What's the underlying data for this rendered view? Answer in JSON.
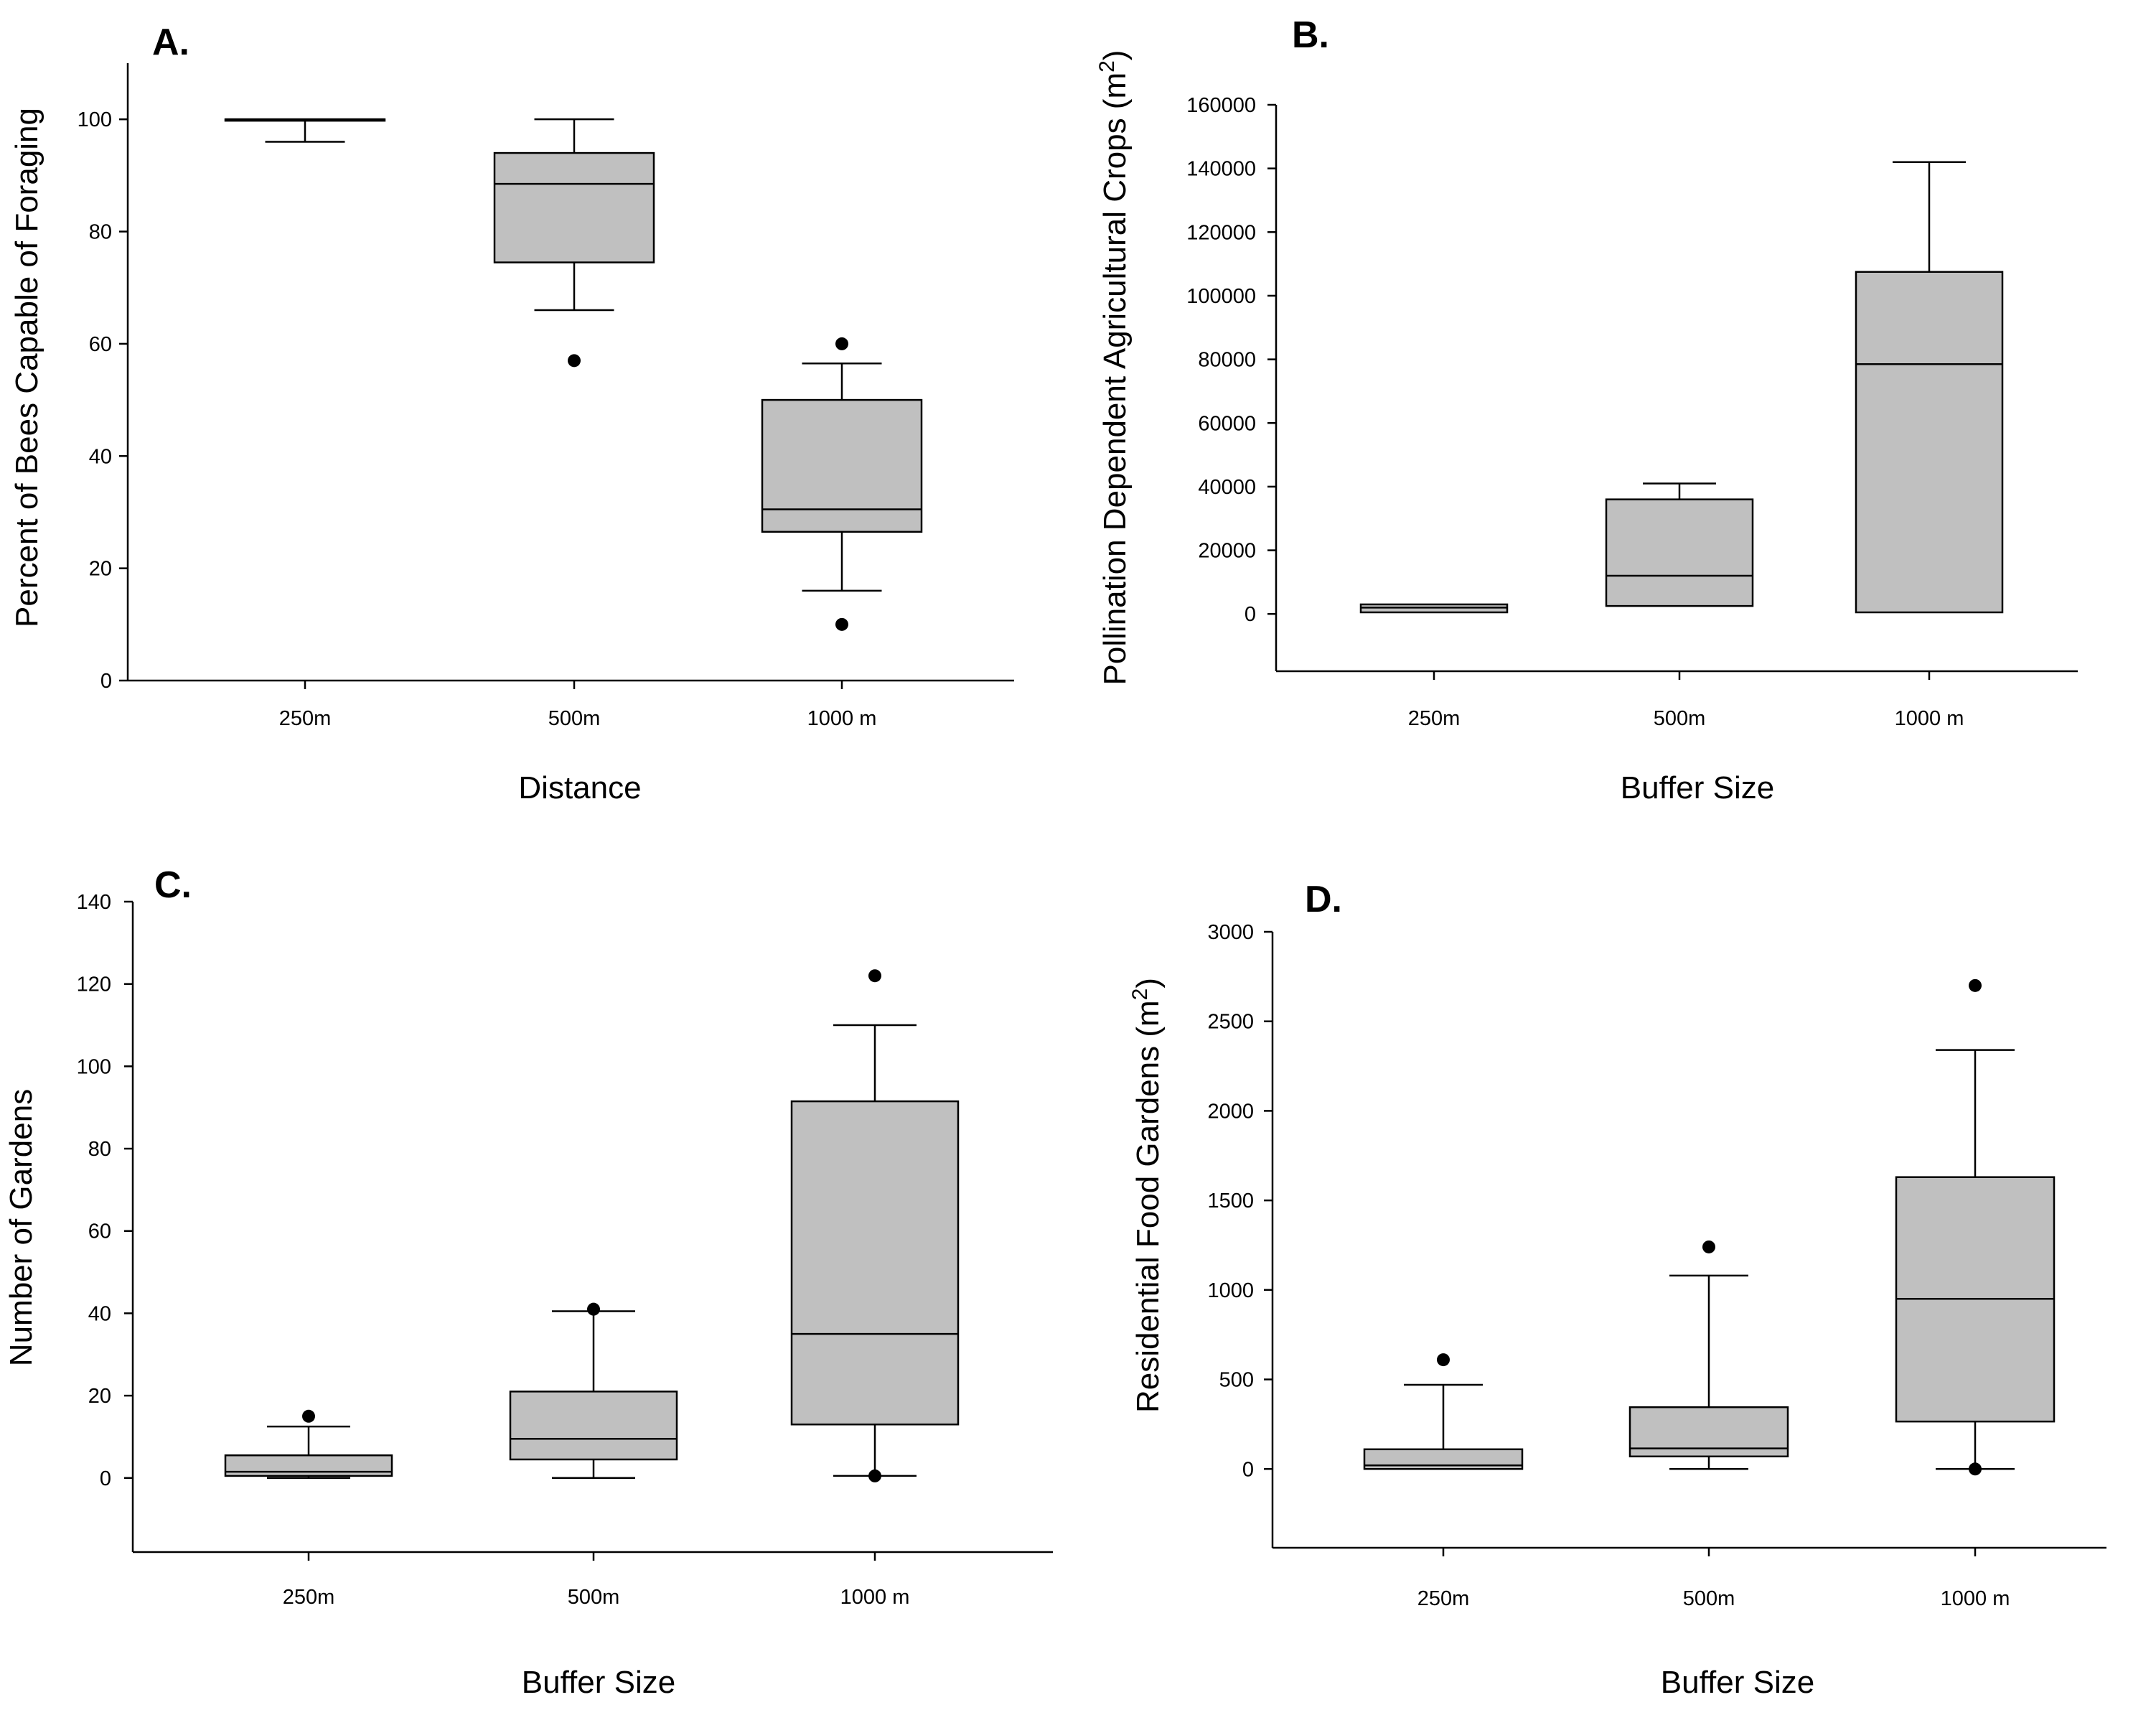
{
  "chart_data": [
    {
      "type": "box",
      "panel_label": "A.",
      "xlabel": "Distance",
      "ylabel": "Percent of Bees Capable of Foraging",
      "ylabel_sup": "",
      "ylabel_tail": "",
      "ylim": [
        0,
        110
      ],
      "yticks": [
        0,
        20,
        40,
        60,
        80,
        100
      ],
      "ytick_labels": [
        "0",
        "20",
        "40",
        "60",
        "80",
        "100"
      ],
      "categories": [
        "250m",
        "500m",
        "1000 m"
      ],
      "boxes": [
        {
          "whisker_low": 96,
          "q1": 99.8,
          "median": 100,
          "q3": 100,
          "whisker_high": 100,
          "outliers": []
        },
        {
          "whisker_low": 66,
          "q1": 74.5,
          "median": 88.5,
          "q3": 94,
          "whisker_high": 100,
          "outliers": [
            57
          ]
        },
        {
          "whisker_low": 16,
          "q1": 26.5,
          "median": 30.5,
          "q3": 50,
          "whisker_high": 56.5,
          "outliers": [
            60,
            10
          ]
        }
      ]
    },
    {
      "type": "box",
      "panel_label": "B.",
      "xlabel": "Buffer Size",
      "ylabel": "Pollination Dependent Agricultural Crops (m",
      "ylabel_sup": "2",
      "ylabel_tail": ")",
      "ylim": [
        -18000,
        160000
      ],
      "yticks": [
        0,
        20000,
        40000,
        60000,
        80000,
        100000,
        120000,
        140000,
        160000
      ],
      "ytick_labels": [
        "0",
        "20000",
        "40000",
        "60000",
        "80000",
        "100000",
        "120000",
        "140000",
        "160000"
      ],
      "categories": [
        "250m",
        "500m",
        "1000 m"
      ],
      "boxes": [
        {
          "whisker_low": 500,
          "q1": 500,
          "median": 2000,
          "q3": 3000,
          "whisker_high": 3000,
          "outliers": []
        },
        {
          "whisker_low": 2500,
          "q1": 2500,
          "median": 12000,
          "q3": 36000,
          "whisker_high": 41000,
          "outliers": []
        },
        {
          "whisker_low": 500,
          "q1": 500,
          "median": 78500,
          "q3": 107500,
          "whisker_high": 142000,
          "outliers": []
        }
      ]
    },
    {
      "type": "box",
      "panel_label": "C.",
      "xlabel": "Buffer Size",
      "ylabel": "Number of Gardens",
      "ylabel_sup": "",
      "ylabel_tail": "",
      "ylim": [
        -18,
        140
      ],
      "yticks": [
        0,
        20,
        40,
        60,
        80,
        100,
        120,
        140
      ],
      "ytick_labels": [
        "0",
        "20",
        "40",
        "60",
        "80",
        "100",
        "120",
        "140"
      ],
      "categories": [
        "250m",
        "500m",
        "1000 m"
      ],
      "boxes": [
        {
          "whisker_low": 0,
          "q1": 0.5,
          "median": 1.5,
          "q3": 5.5,
          "whisker_high": 12.5,
          "outliers": [
            15
          ]
        },
        {
          "whisker_low": 0,
          "q1": 4.5,
          "median": 9.5,
          "q3": 21,
          "whisker_high": 40.5,
          "outliers": [
            41
          ]
        },
        {
          "whisker_low": 0.5,
          "q1": 13,
          "median": 35,
          "q3": 91.5,
          "whisker_high": 110,
          "outliers": [
            122,
            0.5
          ]
        }
      ]
    },
    {
      "type": "box",
      "panel_label": "D.",
      "xlabel": "Buffer Size",
      "ylabel": "Residential Food Gardens (m",
      "ylabel_sup": "2",
      "ylabel_tail": ")",
      "ylim": [
        -440,
        3000
      ],
      "yticks": [
        0,
        500,
        1000,
        1500,
        2000,
        2500,
        3000
      ],
      "ytick_labels": [
        "0",
        "500",
        "1000",
        "1500",
        "2000",
        "2500",
        "3000"
      ],
      "categories": [
        "250m",
        "500m",
        "1000 m"
      ],
      "boxes": [
        {
          "whisker_low": 0,
          "q1": 0,
          "median": 20,
          "q3": 110,
          "whisker_high": 470,
          "outliers": [
            610
          ]
        },
        {
          "whisker_low": 0,
          "q1": 70,
          "median": 115,
          "q3": 345,
          "whisker_high": 1080,
          "outliers": [
            1240
          ]
        },
        {
          "whisker_low": 0,
          "q1": 265,
          "median": 950,
          "q3": 1630,
          "whisker_high": 2340,
          "outliers": [
            2700,
            0
          ]
        }
      ]
    }
  ]
}
